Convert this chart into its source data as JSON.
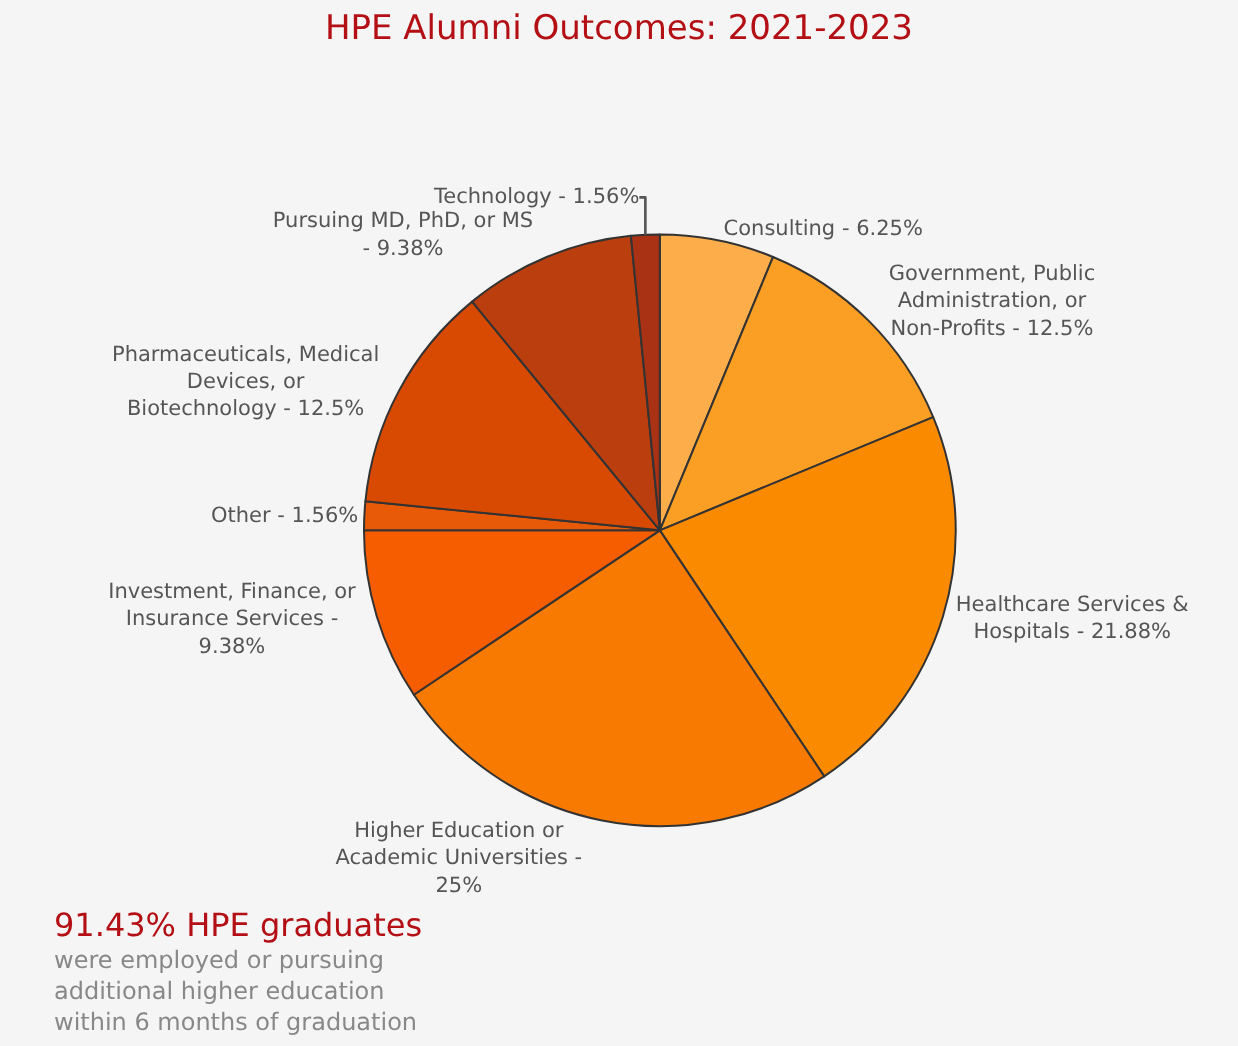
{
  "chart_data": {
    "type": "pie",
    "title": "HPE Alumni Outcomes: 2021-2023",
    "categories": [
      "Consulting - 6.25%",
      "Government, Public Administration, or Non-Profits - 12.5%",
      "Healthcare Services & Hospitals - 21.88%",
      "Higher Education or Academic Universities - 25%",
      "Investment, Finance, or Insurance Services - 9.38%",
      "Other - 1.56%",
      "Pharmaceuticals, Medical Devices, or Biotechnology - 12.5%",
      "Pursuing MD, PhD, or MS - 9.38%",
      "Technology - 1.56%"
    ],
    "values": [
      6.25,
      12.5,
      21.88,
      25,
      9.38,
      1.56,
      12.5,
      9.38,
      1.56
    ],
    "colors": [
      "#fdae4b",
      "#fb9f24",
      "#fa8a00",
      "#f97a00",
      "#f55d00",
      "#e85a08",
      "#d84a02",
      "#bb3e0f",
      "#a93214"
    ],
    "annotations": [
      "91.43% HPE graduates",
      "were employed or pursuing additional higher education within 6 months of graduation"
    ],
    "legend": false
  }
}
